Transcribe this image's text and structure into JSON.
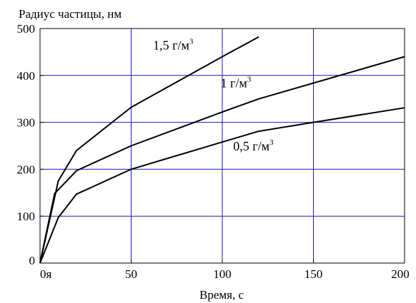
{
  "chart_data": {
    "type": "line",
    "title": "",
    "ylabel": "Радиус частицы, нм",
    "xlabel": "Время, с",
    "xlim": [
      0,
      200
    ],
    "ylim": [
      0,
      500
    ],
    "x_ticks": [
      {
        "value": 0,
        "label": "0я"
      },
      {
        "value": 50,
        "label": "50"
      },
      {
        "value": 100,
        "label": "100"
      },
      {
        "value": 150,
        "label": "150"
      },
      {
        "value": 200,
        "label": "200"
      }
    ],
    "y_ticks": [
      0,
      100,
      200,
      300,
      400,
      500
    ],
    "grid": true,
    "grid_color": "#1a1ab8",
    "line_color": "#000000",
    "series": [
      {
        "label": "1,5 г/м",
        "label_sup": "3",
        "x": [
          0,
          10,
          20,
          50,
          100,
          120
        ],
        "y": [
          0,
          175,
          240,
          332,
          440,
          482
        ]
      },
      {
        "label": "1 г/м",
        "label_sup": "3",
        "x": [
          0,
          8,
          20,
          50,
          100,
          120,
          200
        ],
        "y": [
          0,
          148,
          197,
          250,
          322,
          350,
          440
        ]
      },
      {
        "label": "0,5 г/м",
        "label_sup": "3",
        "x": [
          0,
          10,
          20,
          50,
          100,
          120,
          150,
          200
        ],
        "y": [
          0,
          97,
          147,
          200,
          258,
          281,
          300,
          331
        ]
      }
    ]
  }
}
